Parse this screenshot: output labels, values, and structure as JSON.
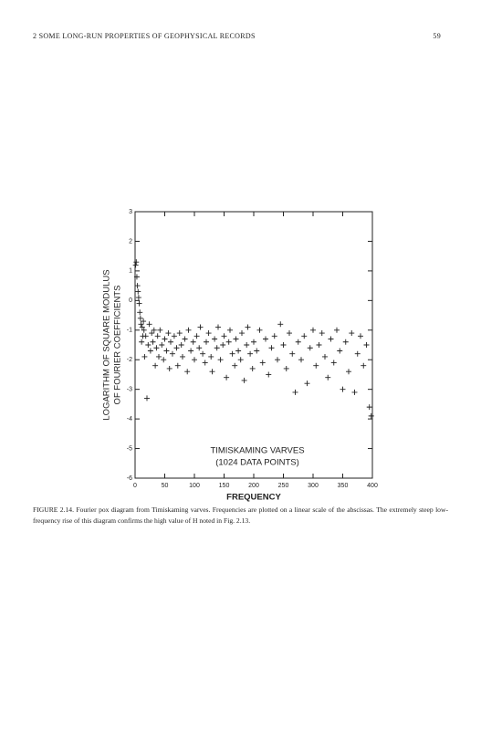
{
  "header": {
    "left": "2   SOME LONG-RUN PROPERTIES OF GEOPHYSICAL RECORDS",
    "page": "59"
  },
  "chart_data": {
    "type": "scatter",
    "xlabel": "FREQUENCY",
    "ylabel": [
      "LOGARITHM OF SQUARE MODULUS",
      "OF FOURIER COEFFICIENTS"
    ],
    "annotation": [
      "TIMISKAMING VARVES",
      "(1024 DATA POINTS)"
    ],
    "marker": "+",
    "color": "#222222",
    "xlim": [
      0,
      400
    ],
    "ylim": [
      -6,
      3
    ],
    "xticks": [
      0,
      50,
      100,
      150,
      200,
      250,
      300,
      350,
      400
    ],
    "yticks": [
      3,
      2,
      1,
      0,
      -1,
      -2,
      -3,
      -4,
      -5,
      -6
    ],
    "x": [
      1,
      2,
      3,
      4,
      5,
      6,
      7,
      8,
      9,
      10,
      11,
      12,
      13,
      14,
      15,
      16,
      18,
      20,
      22,
      24,
      26,
      28,
      30,
      32,
      34,
      36,
      38,
      40,
      42,
      45,
      48,
      50,
      53,
      56,
      58,
      60,
      63,
      66,
      70,
      72,
      75,
      78,
      80,
      84,
      88,
      90,
      94,
      98,
      100,
      104,
      108,
      110,
      114,
      118,
      120,
      124,
      128,
      130,
      134,
      138,
      140,
      144,
      148,
      150,
      154,
      158,
      160,
      164,
      168,
      170,
      174,
      178,
      180,
      184,
      188,
      190,
      194,
      198,
      200,
      205,
      210,
      215,
      220,
      225,
      230,
      235,
      240,
      245,
      250,
      255,
      260,
      265,
      270,
      275,
      280,
      285,
      290,
      295,
      300,
      305,
      310,
      315,
      320,
      325,
      330,
      335,
      340,
      345,
      350,
      355,
      360,
      365,
      370,
      375,
      380,
      385,
      390,
      395,
      398
    ],
    "y": [
      1.2,
      1.3,
      0.8,
      0.5,
      0.3,
      0.1,
      -0.1,
      -0.4,
      -0.6,
      -0.8,
      -1.4,
      -0.9,
      -1.2,
      -0.7,
      -1.0,
      -1.9,
      -1.2,
      -3.3,
      -1.5,
      -0.8,
      -1.7,
      -1.1,
      -1.4,
      -1.0,
      -2.2,
      -1.6,
      -1.2,
      -1.9,
      -1.0,
      -1.5,
      -2.0,
      -1.3,
      -1.7,
      -1.1,
      -2.3,
      -1.4,
      -1.8,
      -1.2,
      -1.6,
      -2.2,
      -1.1,
      -1.5,
      -1.9,
      -1.3,
      -2.4,
      -1.0,
      -1.7,
      -1.4,
      -2.0,
      -1.2,
      -1.6,
      -0.9,
      -1.8,
      -2.1,
      -1.4,
      -1.1,
      -1.9,
      -2.4,
      -1.3,
      -1.6,
      -0.9,
      -2.0,
      -1.5,
      -1.2,
      -2.6,
      -1.4,
      -1.0,
      -1.8,
      -2.2,
      -1.3,
      -1.7,
      -2.0,
      -1.1,
      -2.7,
      -1.5,
      -0.9,
      -1.8,
      -2.3,
      -1.4,
      -1.7,
      -1.0,
      -2.1,
      -1.3,
      -2.5,
      -1.6,
      -1.2,
      -2.0,
      -0.8,
      -1.5,
      -2.3,
      -1.1,
      -1.8,
      -3.1,
      -1.4,
      -2.0,
      -1.2,
      -2.8,
      -1.6,
      -1.0,
      -2.2,
      -1.5,
      -1.1,
      -1.9,
      -2.6,
      -1.3,
      -2.1,
      -1.0,
      -1.7,
      -3.0,
      -1.4,
      -2.4,
      -1.1,
      -3.1,
      -1.8,
      -1.2,
      -2.2,
      -1.5,
      -3.6,
      -3.9
    ]
  },
  "caption": "FIGURE 2.14.  Fourier pox diagram from Timiskaming varves. Frequencies are plotted on a linear scale of the abscissas. The extremely steep low-frequency rise of this diagram confirms the high value of H noted in Fig. 2.13."
}
